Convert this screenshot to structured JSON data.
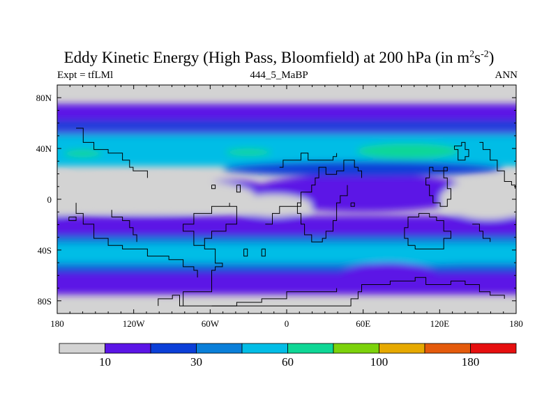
{
  "chart_data": {
    "type": "heatmap",
    "title_parts": {
      "main": "Eddy Kinetic Energy (High Pass, Bloomfield) at 200 hPa (in m",
      "sup1": "2",
      "mid": "s",
      "sup2": "-2",
      "end": ")"
    },
    "subtitle_left": "Expt = tfLMl",
    "subtitle_center": "444_5_MaBP",
    "subtitle_right": "ANN",
    "x_ticks": [
      "180",
      "120W",
      "60W",
      "0",
      "60E",
      "120E",
      "180"
    ],
    "x_tick_values": [
      -180,
      -120,
      -60,
      0,
      60,
      120,
      180
    ],
    "y_ticks": [
      "80N",
      "40N",
      "0",
      "40S",
      "80S"
    ],
    "y_tick_values": [
      80,
      40,
      0,
      -40,
      -80
    ],
    "xlim": [
      -180,
      180
    ],
    "ylim": [
      -90,
      90
    ],
    "contour_levels": [
      10,
      20,
      30,
      40,
      60,
      80,
      100,
      140,
      180
    ],
    "colorbar_labels": [
      "10",
      "30",
      "60",
      "100",
      "180"
    ],
    "colorbar_label_values": [
      10,
      30,
      60,
      100,
      180
    ],
    "colors": [
      "#d3d3d3",
      "#5b15e6",
      "#0b3fd8",
      "#0a7fd9",
      "#02bde6",
      "#0fd796",
      "#7cd20b",
      "#e6a900",
      "#e45a0b",
      "#e60f0f"
    ],
    "bands": [
      {
        "level": 1,
        "lat_min": 47,
        "lat_max": 75
      },
      {
        "level": 2,
        "lat_min": 55,
        "lat_max": 62
      },
      {
        "level": 3,
        "lat_min": 30,
        "lat_max": 53
      },
      {
        "level": 4,
        "lat_min": 26,
        "lat_max": 50
      },
      {
        "level": 1,
        "lat_min": -75,
        "lat_max": -13
      },
      {
        "level": 2,
        "lat_min": -58,
        "lat_max": -28
      },
      {
        "level": 3,
        "lat_min": -54,
        "lat_max": -30
      },
      {
        "level": 4,
        "lat_min": -50,
        "lat_max": -35
      }
    ],
    "blobs": [
      {
        "level": 5,
        "lon": 95,
        "lat": 38,
        "rlon": 40,
        "rlat": 6
      },
      {
        "level": 5,
        "lon": -30,
        "lat": 37,
        "rlon": 18,
        "rlat": 3
      },
      {
        "level": 5,
        "lon": -160,
        "lat": 36,
        "rlon": 15,
        "rlat": 3
      },
      {
        "level": 4,
        "lon": 100,
        "lat": -43,
        "rlon": 75,
        "rlat": 8
      },
      {
        "level": 4,
        "lon": -60,
        "lat": -42,
        "rlon": 60,
        "rlat": 7
      },
      {
        "level": 1,
        "lon": 60,
        "lat": 5,
        "rlon": 90,
        "rlat": 15
      },
      {
        "level": 1,
        "lon": -45,
        "lat": 5,
        "rlon": 35,
        "rlat": 10
      },
      {
        "level": 2,
        "lon": 60,
        "lat": 24,
        "rlon": 110,
        "rlat": 6
      },
      {
        "level": 1,
        "lon": 80,
        "lat": -62,
        "rlon": 40,
        "rlat": 12
      }
    ],
    "calm": [
      {
        "lon": -110,
        "lat": 3,
        "rlon": 85,
        "rlat": 14
      },
      {
        "lon": 158,
        "lat": 0,
        "rlon": 38,
        "rlat": 16
      },
      {
        "lon": 175,
        "lat": 3,
        "rlon": 25,
        "rlat": 17
      },
      {
        "lon": -178,
        "lat": 3,
        "rlon": 15,
        "rlat": 16
      },
      {
        "lon": -10,
        "lat": -5,
        "rlon": 30,
        "rlat": 9
      }
    ],
    "coastlines": [
      [
        [
          -80,
          -84
        ],
        [
          -80,
          -74
        ],
        [
          -70,
          -74
        ],
        [
          -60,
          -66
        ],
        [
          -60,
          -56
        ],
        [
          -56,
          -52
        ],
        [
          -50,
          -50
        ],
        [
          -55,
          -40
        ],
        [
          -65,
          -36
        ],
        [
          -72,
          -26
        ],
        [
          -80,
          -20
        ],
        [
          -72,
          -12
        ],
        [
          -60,
          -6
        ],
        [
          -50,
          -6
        ],
        [
          -44,
          -2
        ],
        [
          -44,
          -6
        ],
        [
          -38,
          -10
        ],
        [
          -40,
          -20
        ],
        [
          -48,
          -26
        ],
        [
          -60,
          -32
        ],
        [
          -64,
          -38
        ]
      ],
      [
        [
          -164,
          -2
        ],
        [
          -164,
          -10
        ],
        [
          -160,
          -20
        ],
        [
          -150,
          -30
        ],
        [
          -140,
          -36
        ],
        [
          -128,
          -40
        ],
        [
          -110,
          -44
        ],
        [
          -92,
          -48
        ],
        [
          -80,
          -52
        ],
        [
          -72,
          -56
        ],
        [
          -70,
          -62
        ]
      ],
      [
        [
          -100,
          -84
        ],
        [
          -100,
          -78
        ],
        [
          -90,
          -76
        ],
        [
          -85,
          -84
        ],
        [
          40,
          -84
        ],
        [
          50,
          -78
        ],
        [
          55,
          -72
        ],
        [
          60,
          -66
        ],
        [
          80,
          -64
        ],
        [
          100,
          -62
        ],
        [
          110,
          -66
        ],
        [
          120,
          -66
        ],
        [
          130,
          -64
        ],
        [
          140,
          -68
        ],
        [
          150,
          -72
        ],
        [
          160,
          -76
        ],
        [
          170,
          -78
        ]
      ],
      [
        [
          -58,
          -84
        ],
        [
          -48,
          -84
        ],
        [
          -40,
          -82
        ],
        [
          -30,
          -80
        ],
        [
          -20,
          -78
        ],
        [
          0,
          -74
        ],
        [
          20,
          -72
        ],
        [
          40,
          -70
        ]
      ],
      [
        [
          -17,
          -20
        ],
        [
          -12,
          -12
        ],
        [
          -5,
          -5
        ],
        [
          5,
          -5
        ],
        [
          10,
          -2
        ],
        [
          12,
          5
        ],
        [
          20,
          10
        ],
        [
          22,
          18
        ],
        [
          24,
          24
        ],
        [
          30,
          24
        ],
        [
          32,
          20
        ],
        [
          38,
          22
        ],
        [
          44,
          30
        ],
        [
          48,
          30
        ],
        [
          52,
          26
        ],
        [
          55,
          22
        ],
        [
          60,
          18
        ]
      ],
      [
        [
          10,
          -2
        ],
        [
          8,
          -12
        ],
        [
          10,
          -20
        ],
        [
          14,
          -28
        ],
        [
          20,
          -34
        ],
        [
          24,
          -34
        ],
        [
          28,
          -32
        ],
        [
          32,
          -26
        ],
        [
          36,
          -18
        ],
        [
          40,
          -12
        ],
        [
          40,
          -4
        ],
        [
          42,
          4
        ],
        [
          48,
          10
        ]
      ],
      [
        [
          -5,
          26
        ],
        [
          -2,
          30
        ],
        [
          5,
          32
        ],
        [
          10,
          36
        ],
        [
          18,
          32
        ],
        [
          24,
          32
        ],
        [
          30,
          30
        ],
        [
          36,
          34
        ],
        [
          40,
          36
        ]
      ],
      [
        [
          100,
          -36
        ],
        [
          96,
          -36
        ],
        [
          94,
          -32
        ],
        [
          92,
          -22
        ],
        [
          96,
          -14
        ],
        [
          104,
          -12
        ],
        [
          112,
          -14
        ],
        [
          118,
          -18
        ],
        [
          124,
          -26
        ],
        [
          128,
          -32
        ],
        [
          124,
          -38
        ],
        [
          118,
          -40
        ],
        [
          112,
          -40
        ],
        [
          106,
          -38
        ],
        [
          100,
          -36
        ]
      ],
      [
        [
          112,
          18
        ],
        [
          108,
          10
        ],
        [
          112,
          4
        ],
        [
          116,
          -2
        ],
        [
          120,
          -6
        ],
        [
          126,
          0
        ],
        [
          128,
          8
        ],
        [
          126,
          16
        ],
        [
          122,
          22
        ],
        [
          116,
          24
        ],
        [
          112,
          18
        ]
      ],
      [
        [
          132,
          38
        ],
        [
          134,
          32
        ],
        [
          138,
          30
        ],
        [
          140,
          34
        ],
        [
          142,
          40
        ],
        [
          140,
          44
        ],
        [
          136,
          42
        ],
        [
          132,
          38
        ]
      ],
      [
        [
          150,
          44
        ],
        [
          154,
          40
        ],
        [
          160,
          30
        ],
        [
          166,
          22
        ],
        [
          170,
          14
        ],
        [
          176,
          10
        ],
        [
          180,
          8
        ]
      ],
      [
        [
          -165,
          55
        ],
        [
          -160,
          46
        ],
        [
          -150,
          40
        ],
        [
          -140,
          36
        ],
        [
          -130,
          30
        ],
        [
          -124,
          26
        ],
        [
          -120,
          22
        ],
        [
          -110,
          18
        ]
      ],
      [
        [
          -138,
          -8
        ],
        [
          -136,
          -14
        ],
        [
          -128,
          -18
        ],
        [
          -122,
          -22
        ],
        [
          -120,
          -28
        ],
        [
          -118,
          -34
        ]
      ],
      [
        [
          145,
          -20
        ],
        [
          150,
          -25
        ],
        [
          155,
          -30
        ],
        [
          160,
          -34
        ]
      ]
    ],
    "islands": [
      [
        [
          -34,
          -40
        ],
        [
          -30,
          -40
        ],
        [
          -30,
          -44
        ],
        [
          -34,
          -44
        ],
        [
          -34,
          -40
        ]
      ],
      [
        [
          -20,
          -40
        ],
        [
          -16,
          -40
        ],
        [
          -16,
          -44
        ],
        [
          -20,
          -44
        ],
        [
          -20,
          -40
        ]
      ],
      [
        [
          -60,
          12
        ],
        [
          -56,
          12
        ],
        [
          -56,
          8
        ],
        [
          -60,
          8
        ],
        [
          -60,
          12
        ]
      ],
      [
        [
          -40,
          10
        ],
        [
          -36,
          10
        ],
        [
          -36,
          6
        ],
        [
          -40,
          6
        ],
        [
          -40,
          10
        ]
      ],
      [
        [
          50,
          -2
        ],
        [
          54,
          -2
        ],
        [
          54,
          -6
        ],
        [
          50,
          -6
        ],
        [
          50,
          -2
        ]
      ],
      [
        [
          -170,
          -14
        ],
        [
          -166,
          -14
        ],
        [
          -166,
          -18
        ],
        [
          -170,
          -18
        ],
        [
          -170,
          -14
        ]
      ],
      [
        [
          122,
          26
        ],
        [
          126,
          26
        ],
        [
          126,
          22
        ],
        [
          122,
          22
        ],
        [
          122,
          26
        ]
      ]
    ]
  }
}
